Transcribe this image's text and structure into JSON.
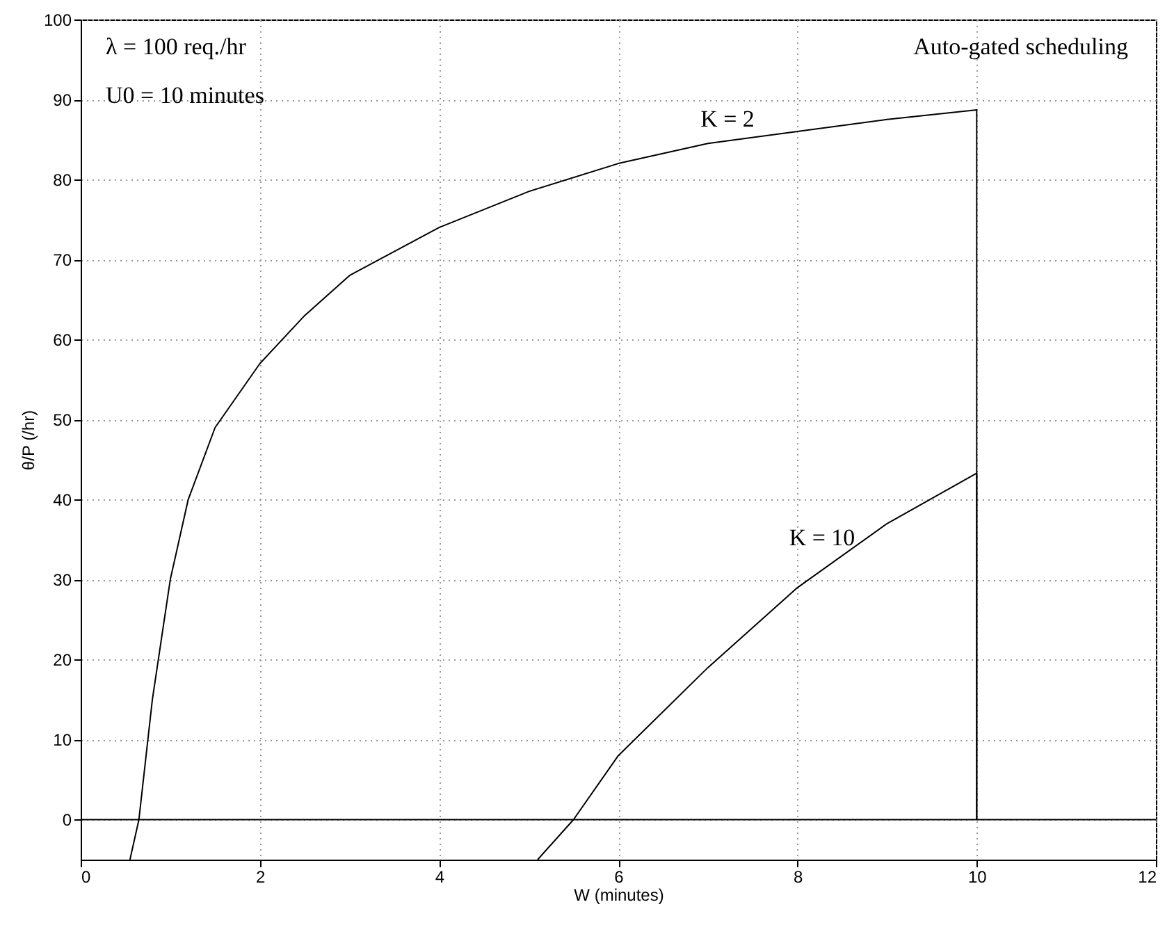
{
  "chart_data": {
    "type": "line",
    "xlabel": "W (minutes)",
    "ylabel": "θ/P (/hr)",
    "xlim": [
      0,
      12
    ],
    "xticks": [
      0,
      2,
      4,
      6,
      8,
      10,
      12
    ],
    "ylim": [
      -5,
      100
    ],
    "yticks": [
      0,
      10,
      20,
      30,
      40,
      50,
      60,
      70,
      80,
      90,
      100
    ],
    "grid": true,
    "line_style": "solid",
    "series": [
      {
        "color": "#000000",
        "x": [
          0.55,
          0.65,
          0.8,
          1,
          1.2,
          1.5,
          2,
          2.5,
          3,
          4,
          5,
          6,
          7,
          8,
          9,
          10,
          10
        ],
        "values": [
          -5,
          0,
          15,
          30,
          40,
          49,
          57,
          63,
          68,
          74,
          78.5,
          82,
          84.5,
          86,
          87.5,
          88.7,
          0
        ]
      },
      {
        "color": "#000000",
        "x": [
          5.1,
          5.5,
          6,
          7,
          8,
          9,
          10,
          10
        ],
        "values": [
          -5,
          0,
          8,
          19,
          29,
          37,
          43.3,
          0
        ]
      }
    ],
    "ref_lines": [
      {
        "axis": "y",
        "value": 0,
        "color": "#000000"
      }
    ],
    "annotations": [
      "K = 2",
      "K = 10",
      "λ = 100 req./hr",
      "U0 = 10 minutes",
      "Auto-gated scheduling"
    ]
  }
}
